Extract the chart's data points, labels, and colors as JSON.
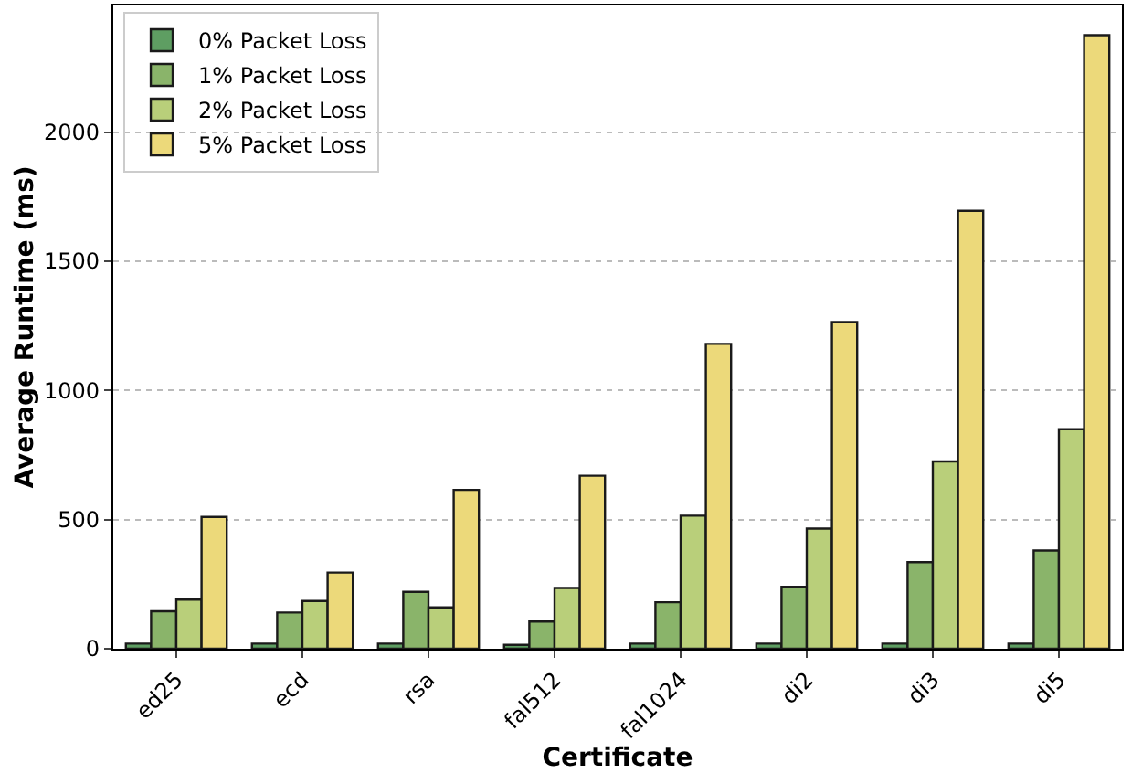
{
  "chart_data": {
    "type": "bar",
    "xlabel": "Certificate",
    "ylabel": "Average Runtime (ms)",
    "categories": [
      "ed25",
      "ecd",
      "rsa",
      "fal512",
      "fal1024",
      "di2",
      "di3",
      "di5"
    ],
    "series": [
      {
        "name": "0% Packet Loss",
        "color": "#5e9e62",
        "values": [
          20,
          20,
          20,
          15,
          20,
          20,
          20,
          20
        ]
      },
      {
        "name": "1% Packet Loss",
        "color": "#8ab46a",
        "values": [
          145,
          140,
          220,
          105,
          180,
          240,
          335,
          380
        ]
      },
      {
        "name": "2% Packet Loss",
        "color": "#b9cf7a",
        "values": [
          190,
          185,
          160,
          235,
          515,
          465,
          725,
          850
        ]
      },
      {
        "name": "5% Packet Loss",
        "color": "#ecd97a",
        "values": [
          510,
          295,
          615,
          670,
          1180,
          1265,
          1695,
          2375
        ]
      }
    ],
    "ylim": [
      0,
      2490
    ],
    "yticks": [
      0,
      500,
      1000,
      1500,
      2000
    ],
    "grid": "y",
    "legend": "top left"
  }
}
